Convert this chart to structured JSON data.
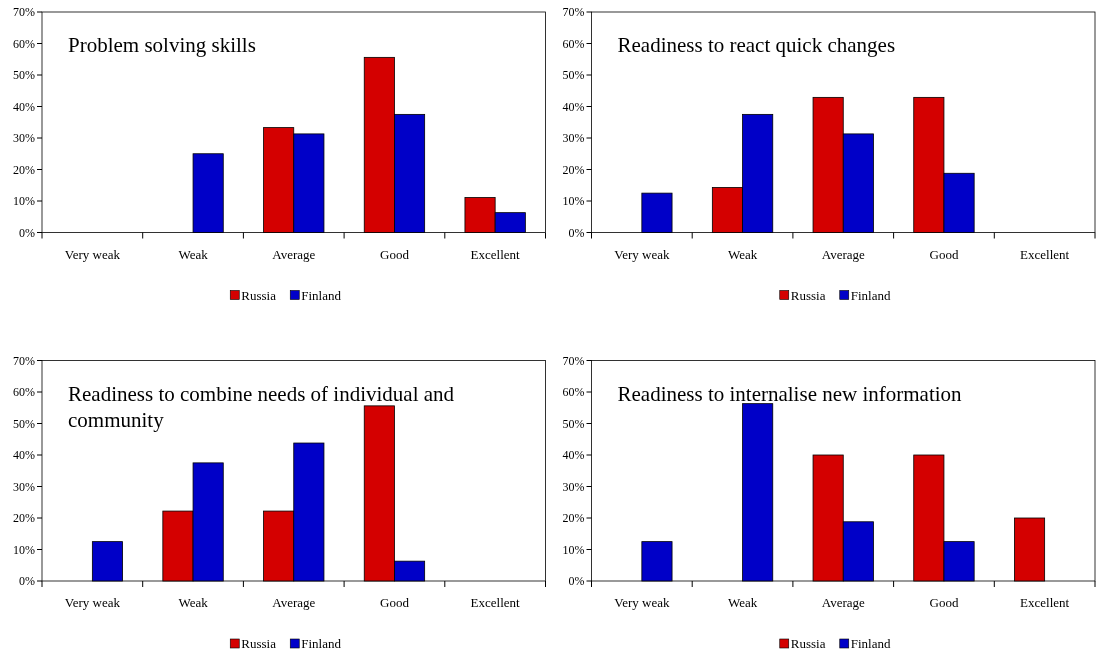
{
  "chart_data": [
    {
      "type": "bar",
      "title": "Problem solving skills",
      "categories": [
        "Very weak",
        "Weak",
        "Average",
        "Good",
        "Excellent"
      ],
      "series": [
        {
          "name": "Russia",
          "color": "#d40000",
          "values": [
            0,
            0,
            33.3,
            55.6,
            11.1
          ]
        },
        {
          "name": "Finland",
          "color": "#0000c8",
          "values": [
            0,
            25,
            31.3,
            37.5,
            6.3
          ]
        }
      ],
      "ylim": [
        0,
        70
      ],
      "yticks": [
        {
          "value": 0,
          "label": "0%"
        },
        {
          "value": 10,
          "label": "10%"
        },
        {
          "value": 20,
          "label": "20%"
        },
        {
          "value": 30,
          "label": "30%"
        },
        {
          "value": 40,
          "label": "40%"
        },
        {
          "value": 50,
          "label": "50%"
        },
        {
          "value": 60,
          "label": "60%"
        },
        {
          "value": 70,
          "label": "70%"
        }
      ],
      "legend": "bottom"
    },
    {
      "type": "bar",
      "title": "Readiness to react quick changes",
      "categories": [
        "Very weak",
        "Weak",
        "Average",
        "Good",
        "Excellent"
      ],
      "series": [
        {
          "name": "Russia",
          "color": "#d40000",
          "values": [
            0,
            14.3,
            42.9,
            42.9,
            0
          ]
        },
        {
          "name": "Finland",
          "color": "#0000c8",
          "values": [
            12.5,
            37.5,
            31.3,
            18.8,
            0
          ]
        }
      ],
      "ylim": [
        0,
        70
      ],
      "yticks": [
        {
          "value": 0,
          "label": "0%"
        },
        {
          "value": 10,
          "label": "10%"
        },
        {
          "value": 20,
          "label": "20%"
        },
        {
          "value": 30,
          "label": "30%"
        },
        {
          "value": 40,
          "label": "40%"
        },
        {
          "value": 50,
          "label": "50%"
        },
        {
          "value": 60,
          "label": "60%"
        },
        {
          "value": 70,
          "label": "70%"
        }
      ],
      "legend": "bottom"
    },
    {
      "type": "bar",
      "title": "Readiness to combine needs of individual and community",
      "categories": [
        "Very weak",
        "Weak",
        "Average",
        "Good",
        "Excellent"
      ],
      "series": [
        {
          "name": "Russia",
          "color": "#d40000",
          "values": [
            0,
            22.2,
            22.2,
            55.6,
            0
          ]
        },
        {
          "name": "Finland",
          "color": "#0000c8",
          "values": [
            12.5,
            37.5,
            43.8,
            6.3,
            0
          ]
        }
      ],
      "ylim": [
        0,
        70
      ],
      "yticks": [
        {
          "value": 0,
          "label": "0%"
        },
        {
          "value": 10,
          "label": "10%"
        },
        {
          "value": 20,
          "label": "20%"
        },
        {
          "value": 30,
          "label": "30%"
        },
        {
          "value": 40,
          "label": "40%"
        },
        {
          "value": 50,
          "label": "50%"
        },
        {
          "value": 60,
          "label": "60%"
        },
        {
          "value": 70,
          "label": "70%"
        }
      ],
      "legend": "bottom"
    },
    {
      "type": "bar",
      "title": "Readiness to internalise new information",
      "categories": [
        "Very weak",
        "Weak",
        "Average",
        "Good",
        "Excellent"
      ],
      "series": [
        {
          "name": "Russia",
          "color": "#d40000",
          "values": [
            0,
            0,
            40,
            40,
            20
          ]
        },
        {
          "name": "Finland",
          "color": "#0000c8",
          "values": [
            12.5,
            56.3,
            18.8,
            12.5,
            0
          ]
        }
      ],
      "ylim": [
        0,
        70
      ],
      "yticks": [
        {
          "value": 0,
          "label": "0%"
        },
        {
          "value": 10,
          "label": "10%"
        },
        {
          "value": 20,
          "label": "20%"
        },
        {
          "value": 30,
          "label": "30%"
        },
        {
          "value": 40,
          "label": "40%"
        },
        {
          "value": 50,
          "label": "50%"
        },
        {
          "value": 60,
          "label": "60%"
        },
        {
          "value": 70,
          "label": "70%"
        }
      ],
      "legend": "bottom"
    }
  ]
}
